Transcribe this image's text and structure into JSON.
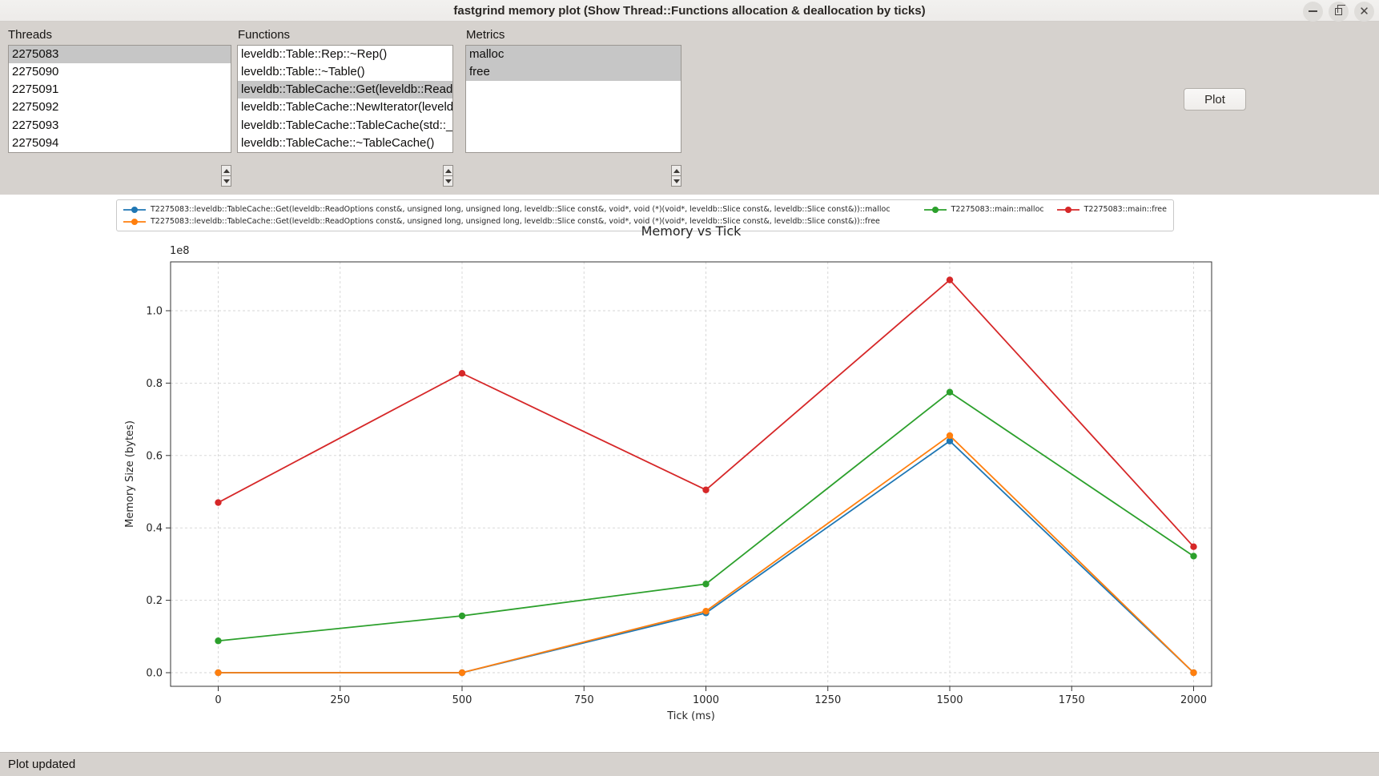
{
  "window": {
    "title": "fastgrind memory plot (Show Thread::Functions allocation & deallocation by ticks)"
  },
  "lists": {
    "threads": {
      "label": "Threads",
      "items": [
        "2275083",
        "2275090",
        "2275091",
        "2275092",
        "2275093",
        "2275094"
      ],
      "selected": [
        0
      ]
    },
    "functions": {
      "label": "Functions",
      "items": [
        "leveldb::Table::Rep::~Rep()",
        "leveldb::Table::~Table()",
        "leveldb::TableCache::Get(leveldb::ReadOptions const&, unsigned long, unsigned long, leveldb::Slice const&, void*, void (*)(void*, leveldb::Slice const&, leveldb::Slice const&))",
        "leveldb::TableCache::NewIterator(leveldb",
        "leveldb::TableCache::TableCache(std::__",
        "leveldb::TableCache::~TableCache()"
      ],
      "selected": [
        2
      ]
    },
    "metrics": {
      "label": "Metrics",
      "items": [
        "malloc",
        "free"
      ],
      "selected": [
        0,
        1
      ]
    }
  },
  "toolbar": {
    "plot_label": "Plot"
  },
  "statusbar": {
    "text": "Plot updated"
  },
  "chart_data": {
    "type": "line",
    "title": "Memory vs Tick",
    "xlabel": "Tick (ms)",
    "ylabel": "Memory Size (bytes)",
    "offset_text": "1e8",
    "x": [
      0,
      500,
      1000,
      1500,
      2000
    ],
    "xticks": [
      0,
      250,
      500,
      750,
      1000,
      1250,
      1500,
      1750,
      2000
    ],
    "yticks": [
      0,
      20000000,
      40000000,
      60000000,
      80000000,
      100000000
    ],
    "ytick_labels": [
      "0.0",
      "0.2",
      "0.4",
      "0.6",
      "0.8",
      "1.0"
    ],
    "xlim": [
      -98,
      2038
    ],
    "ylim": [
      -5500000,
      113500000
    ],
    "grid": true,
    "legend_position": "top",
    "legend_rows": [
      [
        0,
        2,
        3
      ],
      [
        1
      ]
    ],
    "series": [
      {
        "name": "T2275083::leveldb::TableCache::Get(leveldb::ReadOptions const&, unsigned long, unsigned long, leveldb::Slice const&, void*, void (*)(void*, leveldb::Slice const&, leveldb::Slice const&))::malloc",
        "color": "#1f77b4",
        "values": [
          0,
          0,
          16500000,
          64000000,
          0
        ]
      },
      {
        "name": "T2275083::leveldb::TableCache::Get(leveldb::ReadOptions const&, unsigned long, unsigned long, leveldb::Slice const&, void*, void (*)(void*, leveldb::Slice const&, leveldb::Slice const&))::free",
        "color": "#ff7f0e",
        "values": [
          0,
          0,
          17000000,
          65500000,
          0
        ]
      },
      {
        "name": "T2275083::main::malloc",
        "color": "#2ca02c",
        "values": [
          8800000,
          15700000,
          24500000,
          77500000,
          32200000
        ]
      },
      {
        "name": "T2275083::main::free",
        "color": "#d62728",
        "values": [
          47000000,
          82700000,
          50500000,
          108500000,
          34800000
        ]
      }
    ]
  }
}
